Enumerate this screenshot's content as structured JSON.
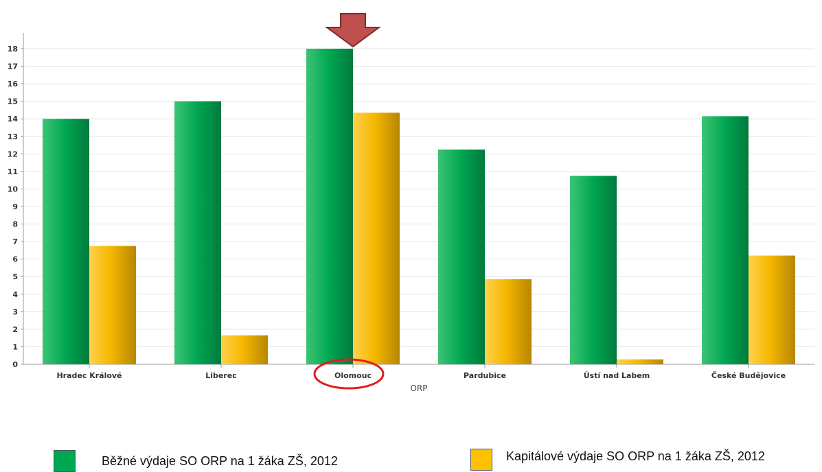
{
  "chart_data": {
    "type": "bar",
    "xlabel": "ORP",
    "ylabel": "",
    "ylim": [
      0,
      18
    ],
    "yticks": [
      0,
      1,
      2,
      3,
      4,
      5,
      6,
      7,
      8,
      9,
      10,
      11,
      12,
      13,
      14,
      15,
      16,
      17,
      18
    ],
    "grid": true,
    "legend_position": "bottom",
    "categories": [
      "Hradec Králové",
      "Liberec",
      "Olomouc",
      "Pardubice",
      "Ústí nad Labem",
      "České Budějovice"
    ],
    "series": [
      {
        "name": "Běžné výdaje SO ORP na 1 žáka ZŠ, 2012",
        "color": "#00a651",
        "values": [
          14.0,
          15.0,
          18.0,
          12.25,
          10.75,
          14.15
        ]
      },
      {
        "name": "Kapitálové výdaje SO ORP na 1 žáka ZŠ, 2012",
        "color": "#ffc000",
        "values": [
          6.75,
          1.65,
          14.35,
          4.85,
          0.28,
          6.2
        ]
      }
    ],
    "highlight": {
      "category": "Olomouc",
      "arrow_color": "#c0504d",
      "circle_color": "#e31c1c"
    }
  }
}
